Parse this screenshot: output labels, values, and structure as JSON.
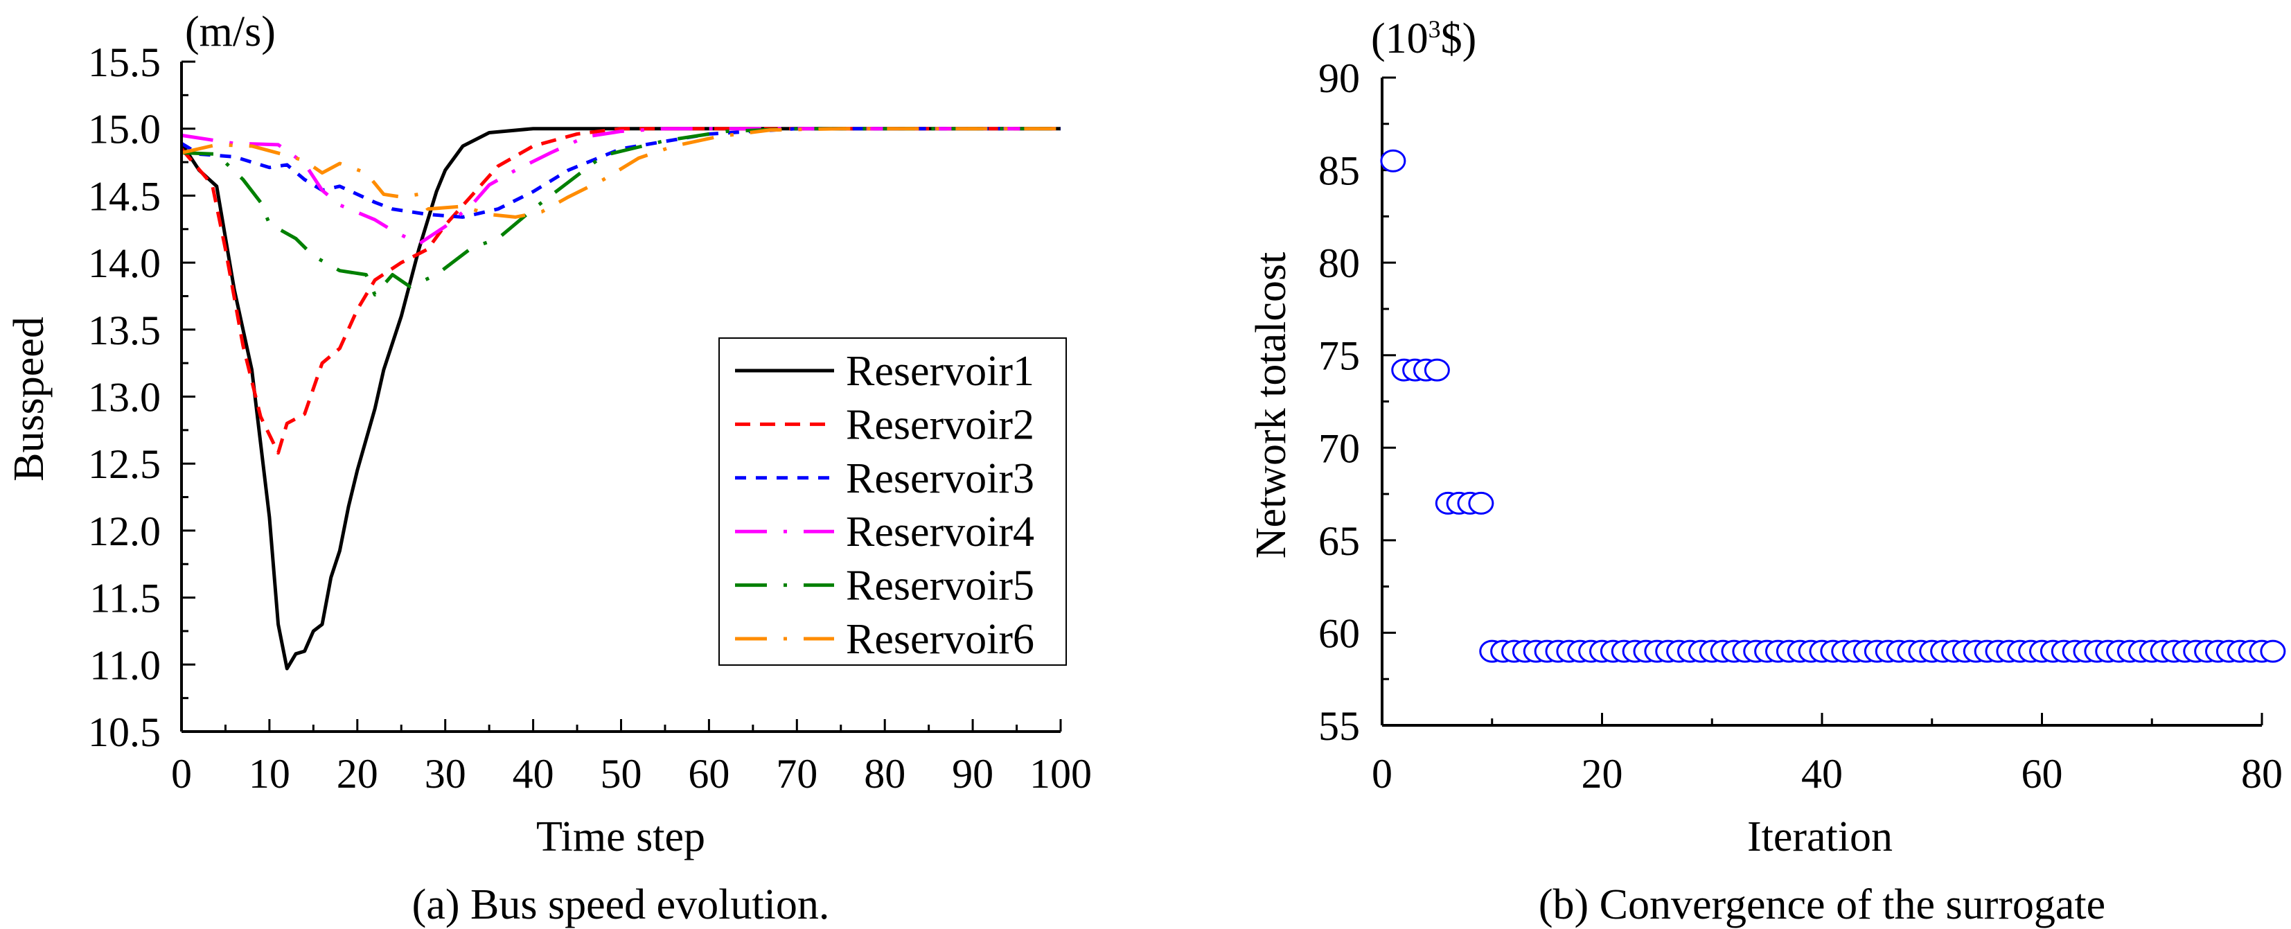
{
  "chart_data": [
    {
      "type": "line",
      "caption": "(a) Bus speed evolution.",
      "xlabel": "Time step",
      "ylabel": "Busspeed",
      "yunit": "(m/s)",
      "xlim": [
        0,
        100
      ],
      "ylim": [
        10.5,
        15.5
      ],
      "xticks": [
        "0",
        "10",
        "20",
        "30",
        "40",
        "50",
        "60",
        "70",
        "80",
        "90",
        "100"
      ],
      "yticks": [
        "10.5",
        "11.0",
        "11.5",
        "12.0",
        "12.5",
        "13.0",
        "13.5",
        "14.0",
        "14.5",
        "15.0",
        "15.5"
      ],
      "grid": false,
      "legend_position": "right-center",
      "series": [
        {
          "name": "Reservoir1",
          "color": "#000000",
          "style": "solid",
          "x": [
            0,
            2,
            4,
            6,
            8,
            10,
            11,
            12,
            13,
            14,
            15,
            16,
            17,
            18,
            19,
            20,
            22,
            23,
            25,
            27,
            29,
            30,
            32,
            35,
            40,
            100
          ],
          "y": [
            14.89,
            14.69,
            14.57,
            13.8,
            13.2,
            12.1,
            11.3,
            10.97,
            11.08,
            11.1,
            11.25,
            11.3,
            11.65,
            11.85,
            12.18,
            12.45,
            12.91,
            13.2,
            13.6,
            14.1,
            14.53,
            14.69,
            14.87,
            14.97,
            15.0,
            15.0
          ]
        },
        {
          "name": "Reservoir2",
          "color": "#ff0000",
          "style": "dashed",
          "x": [
            0,
            3.5,
            5,
            7,
            9,
            11,
            12,
            14,
            16,
            18,
            20,
            22,
            25,
            28,
            30,
            33,
            36,
            40,
            45,
            50,
            100
          ],
          "y": [
            14.85,
            14.58,
            14.1,
            13.38,
            12.85,
            12.58,
            12.8,
            12.87,
            13.25,
            13.36,
            13.65,
            13.87,
            14.0,
            14.1,
            14.28,
            14.5,
            14.72,
            14.87,
            14.96,
            15.0,
            15.0
          ]
        },
        {
          "name": "Reservoir3",
          "color": "#0000ff",
          "style": "dashed",
          "x": [
            0,
            2,
            6,
            10,
            12,
            14,
            16,
            18,
            22,
            24,
            28,
            32,
            36,
            40,
            44,
            50,
            60,
            70,
            100
          ],
          "y": [
            14.89,
            14.81,
            14.79,
            14.71,
            14.73,
            14.62,
            14.54,
            14.57,
            14.45,
            14.4,
            14.36,
            14.34,
            14.4,
            14.53,
            14.69,
            14.85,
            14.96,
            15.0,
            15.0
          ]
        },
        {
          "name": "Reservoir4",
          "color": "#ff00ff",
          "style": "dash-dot",
          "x": [
            0,
            6,
            11,
            14,
            16,
            18,
            22,
            24,
            27,
            30,
            33,
            35,
            38,
            42,
            46,
            50,
            55,
            100
          ],
          "y": [
            14.95,
            14.89,
            14.88,
            14.74,
            14.54,
            14.43,
            14.32,
            14.24,
            14.14,
            14.27,
            14.43,
            14.58,
            14.69,
            14.82,
            14.94,
            14.98,
            15.0,
            15.0
          ]
        },
        {
          "name": "Reservoir5",
          "color": "#008000",
          "style": "dash-dot",
          "x": [
            0,
            4,
            7,
            9,
            10,
            13,
            15,
            18,
            21,
            22,
            24,
            26,
            29,
            33,
            36,
            40,
            44,
            48,
            55,
            62,
            70,
            100
          ],
          "y": [
            14.82,
            14.81,
            14.62,
            14.45,
            14.29,
            14.18,
            14.05,
            13.94,
            13.91,
            13.76,
            13.91,
            13.82,
            13.91,
            14.11,
            14.18,
            14.4,
            14.6,
            14.8,
            14.91,
            14.98,
            15.0,
            15.0
          ]
        },
        {
          "name": "Reservoir6",
          "color": "#ff8c00",
          "style": "dash-dot",
          "x": [
            0,
            4,
            8,
            12,
            14,
            16,
            18,
            21,
            23,
            25,
            27,
            28,
            32,
            35,
            38,
            41,
            44,
            48,
            52,
            56,
            61,
            67,
            75,
            100
          ],
          "y": [
            14.82,
            14.88,
            14.87,
            14.8,
            14.76,
            14.67,
            14.74,
            14.67,
            14.51,
            14.49,
            14.51,
            14.4,
            14.42,
            14.36,
            14.34,
            14.38,
            14.49,
            14.62,
            14.78,
            14.87,
            14.94,
            14.99,
            15.0,
            15.0
          ]
        }
      ]
    },
    {
      "type": "scatter",
      "caption": "(b) Convergence of the surrogate",
      "xlabel": "Iteration",
      "ylabel": "Network totalcost",
      "yunit_base": "(10",
      "yunit_sup": "3",
      "yunit_rest": "$)",
      "xlim": [
        0,
        80
      ],
      "ylim": [
        55,
        90
      ],
      "xticks": [
        "0",
        "20",
        "40",
        "60",
        "80"
      ],
      "yticks": [
        "55",
        "60",
        "65",
        "70",
        "75",
        "80",
        "85",
        "90"
      ],
      "grid": false,
      "marker": "open-circle",
      "color": "#0000ff",
      "points": [
        [
          1,
          85.5
        ],
        [
          2,
          74.2
        ],
        [
          3,
          74.2
        ],
        [
          4,
          74.2
        ],
        [
          5,
          74.2
        ],
        [
          6,
          67.0
        ],
        [
          7,
          67.0
        ],
        [
          8,
          67.0
        ],
        [
          9,
          67.0
        ],
        [
          10,
          59
        ],
        [
          11,
          59
        ],
        [
          12,
          59
        ],
        [
          13,
          59
        ],
        [
          14,
          59
        ],
        [
          15,
          59
        ],
        [
          16,
          59
        ],
        [
          17,
          59
        ],
        [
          18,
          59
        ],
        [
          19,
          59
        ],
        [
          20,
          59
        ],
        [
          21,
          59
        ],
        [
          22,
          59
        ],
        [
          23,
          59
        ],
        [
          24,
          59
        ],
        [
          25,
          59
        ],
        [
          26,
          59
        ],
        [
          27,
          59
        ],
        [
          28,
          59
        ],
        [
          29,
          59
        ],
        [
          30,
          59
        ],
        [
          31,
          59
        ],
        [
          32,
          59
        ],
        [
          33,
          59
        ],
        [
          34,
          59
        ],
        [
          35,
          59
        ],
        [
          36,
          59
        ],
        [
          37,
          59
        ],
        [
          38,
          59
        ],
        [
          39,
          59
        ],
        [
          40,
          59
        ],
        [
          41,
          59
        ],
        [
          42,
          59
        ],
        [
          43,
          59
        ],
        [
          44,
          59
        ],
        [
          45,
          59
        ],
        [
          46,
          59
        ],
        [
          47,
          59
        ],
        [
          48,
          59
        ],
        [
          49,
          59
        ],
        [
          50,
          59
        ],
        [
          51,
          59
        ],
        [
          52,
          59
        ],
        [
          53,
          59
        ],
        [
          54,
          59
        ],
        [
          55,
          59
        ],
        [
          56,
          59
        ],
        [
          57,
          59
        ],
        [
          58,
          59
        ],
        [
          59,
          59
        ],
        [
          60,
          59
        ],
        [
          61,
          59
        ],
        [
          62,
          59
        ],
        [
          63,
          59
        ],
        [
          64,
          59
        ],
        [
          65,
          59
        ],
        [
          66,
          59
        ],
        [
          67,
          59
        ],
        [
          68,
          59
        ],
        [
          69,
          59
        ],
        [
          70,
          59
        ],
        [
          71,
          59
        ],
        [
          72,
          59
        ],
        [
          73,
          59
        ],
        [
          74,
          59
        ],
        [
          75,
          59
        ],
        [
          76,
          59
        ],
        [
          77,
          59
        ],
        [
          78,
          59
        ],
        [
          79,
          59
        ],
        [
          80,
          59
        ],
        [
          81,
          59
        ]
      ]
    }
  ]
}
